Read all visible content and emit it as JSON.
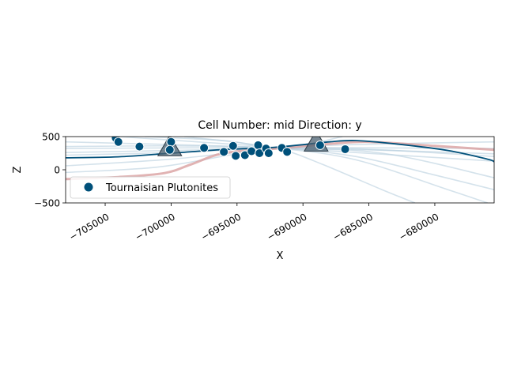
{
  "chart_data": {
    "type": "scatter",
    "title": "Cell Number: mid Direction: y",
    "xlabel": "X",
    "ylabel": "Z",
    "xlim": [
      -708000,
      -675500
    ],
    "ylim": [
      -500,
      500
    ],
    "xticks": [
      -705000,
      -700000,
      -695000,
      -690000,
      -685000,
      -680000
    ],
    "xtick_labels": [
      "−705000",
      "−700000",
      "−695000",
      "−690000",
      "−685000",
      "−680000"
    ],
    "yticks": [
      -500,
      0,
      500
    ],
    "ytick_labels": [
      "−500",
      "0",
      "500"
    ],
    "legend": {
      "position": "lower-left",
      "entries": [
        "Tournaisian Plutonites"
      ]
    },
    "colors": {
      "points": "#00507a",
      "main_line": "#00507a",
      "red_line": "#d9a0a0",
      "faint_lines": "#b8cfdd",
      "triangles": "#4b6070"
    },
    "points": [
      {
        "x": -704200,
        "z": 480
      },
      {
        "x": -704000,
        "z": 420
      },
      {
        "x": -702400,
        "z": 350
      },
      {
        "x": -700000,
        "z": 420
      },
      {
        "x": -700100,
        "z": 300
      },
      {
        "x": -697500,
        "z": 330
      },
      {
        "x": -696000,
        "z": 270
      },
      {
        "x": -695300,
        "z": 360
      },
      {
        "x": -695100,
        "z": 210
      },
      {
        "x": -694400,
        "z": 220
      },
      {
        "x": -693900,
        "z": 280
      },
      {
        "x": -693400,
        "z": 370
      },
      {
        "x": -693300,
        "z": 250
      },
      {
        "x": -692800,
        "z": 320
      },
      {
        "x": -692600,
        "z": 250
      },
      {
        "x": -691600,
        "z": 330
      },
      {
        "x": -691200,
        "z": 270
      },
      {
        "x": -688700,
        "z": 370
      },
      {
        "x": -686800,
        "z": 310
      }
    ],
    "orientation_markers": [
      {
        "x": -700100,
        "z": 330
      },
      {
        "x": -689000,
        "z": 400
      }
    ],
    "main_line": [
      {
        "x": -708000,
        "z": 180
      },
      {
        "x": -704000,
        "z": 195
      },
      {
        "x": -700000,
        "z": 250
      },
      {
        "x": -696000,
        "z": 305
      },
      {
        "x": -692000,
        "z": 340
      },
      {
        "x": -688000,
        "z": 420
      },
      {
        "x": -686000,
        "z": 440
      },
      {
        "x": -683000,
        "z": 390
      },
      {
        "x": -679000,
        "z": 290
      },
      {
        "x": -676000,
        "z": 160
      },
      {
        "x": -675500,
        "z": 120
      }
    ],
    "red_line": [
      {
        "x": -708000,
        "z": -140
      },
      {
        "x": -704000,
        "z": -110
      },
      {
        "x": -700500,
        "z": -50
      },
      {
        "x": -698500,
        "z": 80
      },
      {
        "x": -696000,
        "z": 250
      },
      {
        "x": -692000,
        "z": 320
      },
      {
        "x": -688000,
        "z": 390
      },
      {
        "x": -685000,
        "z": 420
      },
      {
        "x": -680000,
        "z": 360
      },
      {
        "x": -675500,
        "z": 300
      }
    ],
    "faint_lines": [
      [
        {
          "x": -708000,
          "z": 320
        },
        {
          "x": -700000,
          "z": 330
        },
        {
          "x": -692000,
          "z": 335
        },
        {
          "x": -684000,
          "z": 330
        },
        {
          "x": -675500,
          "z": 320
        }
      ],
      [
        {
          "x": -708000,
          "z": 260
        },
        {
          "x": -700000,
          "z": 290
        },
        {
          "x": -692000,
          "z": 320
        },
        {
          "x": -685000,
          "z": 300
        },
        {
          "x": -675500,
          "z": 240
        }
      ],
      [
        {
          "x": -708000,
          "z": 420
        },
        {
          "x": -700000,
          "z": 380
        },
        {
          "x": -692000,
          "z": 330
        },
        {
          "x": -686000,
          "z": 260
        },
        {
          "x": -675500,
          "z": 130
        }
      ],
      [
        {
          "x": -704000,
          "z": 500
        },
        {
          "x": -698000,
          "z": 420
        },
        {
          "x": -692000,
          "z": 330
        },
        {
          "x": -686000,
          "z": 150
        },
        {
          "x": -679000,
          "z": -300
        },
        {
          "x": -676000,
          "z": -500
        }
      ],
      [
        {
          "x": -708000,
          "z": 60
        },
        {
          "x": -700000,
          "z": 160
        },
        {
          "x": -692000,
          "z": 320
        },
        {
          "x": -686000,
          "z": 380
        },
        {
          "x": -675500,
          "z": 420
        }
      ],
      [
        {
          "x": -708000,
          "z": -40
        },
        {
          "x": -701000,
          "z": 40
        },
        {
          "x": -695000,
          "z": 240
        },
        {
          "x": -691000,
          "z": 330
        },
        {
          "x": -684000,
          "z": 300
        },
        {
          "x": -675500,
          "z": 200
        }
      ],
      [
        {
          "x": -699000,
          "z": 500
        },
        {
          "x": -694500,
          "z": 400
        },
        {
          "x": -691500,
          "z": 300
        },
        {
          "x": -688500,
          "z": 80
        },
        {
          "x": -684000,
          "z": -300
        },
        {
          "x": -681500,
          "z": -500
        }
      ],
      [
        {
          "x": -708000,
          "z": 350
        },
        {
          "x": -700000,
          "z": 360
        },
        {
          "x": -692000,
          "z": 330
        },
        {
          "x": -686000,
          "z": 200
        },
        {
          "x": -680000,
          "z": -80
        },
        {
          "x": -675500,
          "z": -300
        }
      ],
      [
        {
          "x": -708000,
          "z": 220
        },
        {
          "x": -700000,
          "z": 260
        },
        {
          "x": -692000,
          "z": 315
        },
        {
          "x": -684000,
          "z": 250
        },
        {
          "x": -675500,
          "z": -120
        }
      ],
      [
        {
          "x": -702000,
          "z": 500
        },
        {
          "x": -696000,
          "z": 440
        },
        {
          "x": -691500,
          "z": 330
        },
        {
          "x": -687000,
          "z": 500
        }
      ]
    ]
  }
}
